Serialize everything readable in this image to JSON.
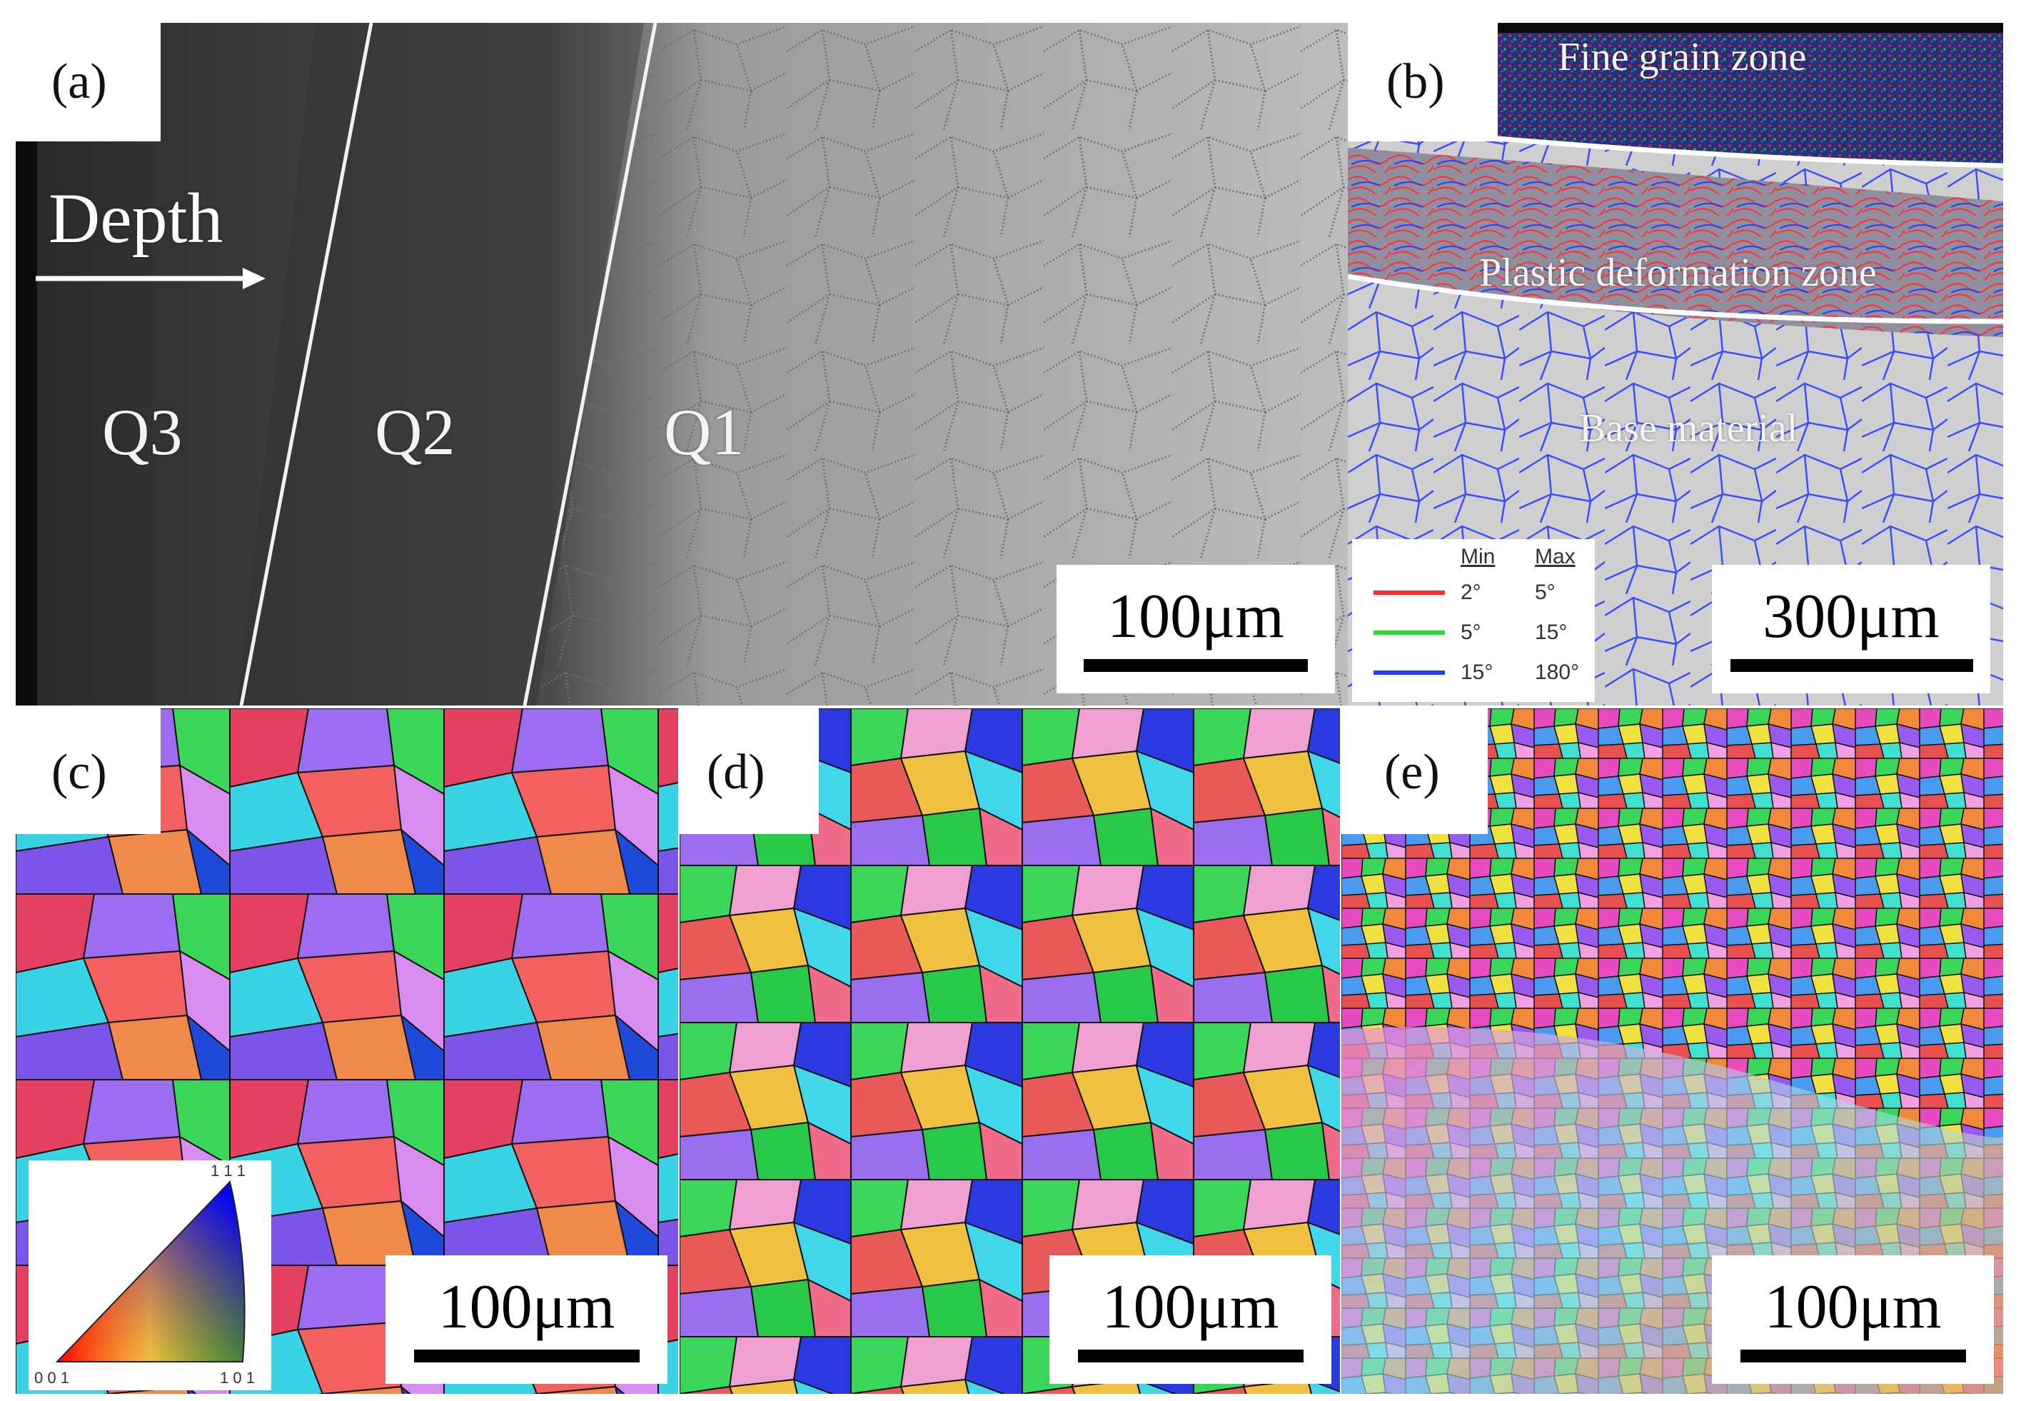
{
  "colors": {
    "sem_dark": "#3a3a3a",
    "sem_light": "#b8b8b8",
    "boundary_red": "#ff2a2a",
    "boundary_green": "#2bdc2b",
    "boundary_blue": "#1f3cff"
  },
  "panel_a": {
    "label": "(a)",
    "depth_label": "Depth",
    "zones": [
      "Q3",
      "Q2",
      "Q1"
    ],
    "scale_bar": "100μm"
  },
  "panel_b": {
    "label": "(b)",
    "zones": [
      "Fine grain zone",
      "Plastic deformation zone",
      "Base material"
    ],
    "scale_bar": "300μm",
    "legend": {
      "header_min": "Min",
      "header_max": "Max",
      "rows": [
        {
          "min": "2°",
          "max": "5°",
          "color": "#ff2a2a"
        },
        {
          "min": "5°",
          "max": "15°",
          "color": "#2bdc2b"
        },
        {
          "min": "15°",
          "max": "180°",
          "color": "#1f3cff"
        }
      ]
    }
  },
  "panel_c": {
    "label": "(c)",
    "scale_bar": "100μm",
    "ipf_key": {
      "top": "1 1 1",
      "bottom_left": "0 0 1",
      "bottom_right": "1 0 1"
    }
  },
  "panel_d": {
    "label": "(d)",
    "scale_bar": "100μm"
  },
  "panel_e": {
    "label": "(e)",
    "scale_bar": "100μm"
  }
}
